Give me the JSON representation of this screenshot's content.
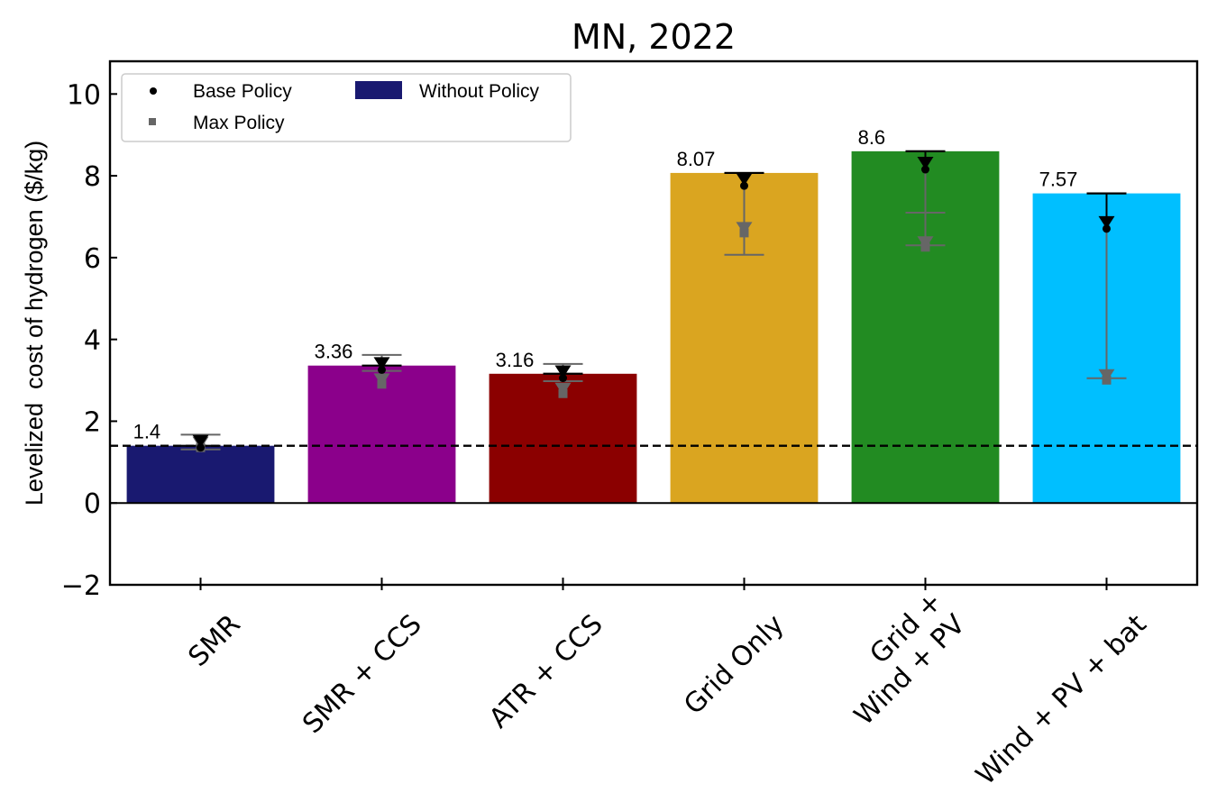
{
  "chart_data": {
    "type": "bar",
    "title": "MN, 2022",
    "xlabel": "",
    "ylabel": "Levelized  cost of hydrogen ($/kg)",
    "ylim": [
      -2,
      10.8
    ],
    "yticks": [
      -2,
      0,
      2,
      4,
      6,
      8,
      10
    ],
    "ytick_labels": [
      "−2",
      "0",
      "2",
      "4",
      "6",
      "8",
      "10"
    ],
    "reference_line": 1.4,
    "categories": [
      {
        "label_lines": [
          "SMR"
        ],
        "value": 1.4,
        "value_label": "1.4",
        "color": "#191970",
        "base_policy": 1.4,
        "max_policy": 1.4,
        "max_err_low": 1.31,
        "max_err_high": 1.67,
        "base_err_low": 1.4,
        "base_err_high": 1.4
      },
      {
        "label_lines": [
          "SMR + CCS"
        ],
        "value": 3.36,
        "value_label": "3.36",
        "color": "#8B008B",
        "base_policy": 3.3,
        "max_policy": 2.95,
        "max_err_low": 3.23,
        "max_err_high": 3.62,
        "base_err_low": 3.3,
        "base_err_high": 3.36
      },
      {
        "label_lines": [
          "ATR + CCS"
        ],
        "value": 3.16,
        "value_label": "3.16",
        "color": "#8B0000",
        "base_policy": 3.1,
        "max_policy": 2.72,
        "max_err_low": 2.98,
        "max_err_high": 3.4,
        "base_err_low": 3.1,
        "base_err_high": 3.16
      },
      {
        "label_lines": [
          "Grid Only"
        ],
        "value": 8.07,
        "value_label": "8.07",
        "color": "#DAA520",
        "base_policy": 7.8,
        "max_policy": 6.65,
        "max_err_low": 6.07,
        "max_err_high": 8.07,
        "base_err_low": 7.8,
        "base_err_high": 8.07
      },
      {
        "label_lines": [
          "Grid +",
          "Wind + PV"
        ],
        "value": 8.6,
        "value_label": "8.6",
        "color": "#228B22",
        "base_policy": 8.2,
        "max_policy": 6.3,
        "max_err_low": 6.3,
        "max_err_high": 8.6,
        "base_err_low": 8.2,
        "base_err_high": 8.6,
        "max_err_mid": 7.1
      },
      {
        "label_lines": [
          "Wind + PV + bat"
        ],
        "value": 7.57,
        "value_label": "7.57",
        "color": "#00BFFF",
        "base_policy": 6.75,
        "max_policy": 3.05,
        "max_err_low": 3.05,
        "max_err_high": 7.57,
        "base_err_low": 6.75,
        "base_err_high": 7.57
      }
    ],
    "legend": {
      "placement": "top-left",
      "entries": [
        {
          "label": "Base Policy",
          "marker": "circle",
          "color": "#000000"
        },
        {
          "label": "Max Policy",
          "marker": "square",
          "color": "#666666"
        },
        {
          "label": "Without Policy",
          "marker": "patch",
          "color": "#191970"
        }
      ]
    }
  }
}
